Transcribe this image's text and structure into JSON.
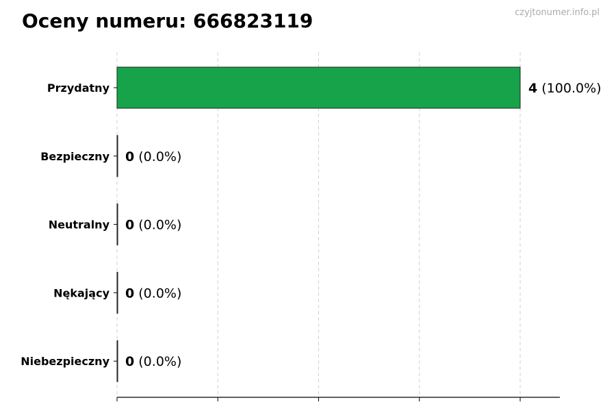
{
  "chart_data": {
    "type": "bar",
    "orientation": "horizontal",
    "title": "Oceny numeru: 666823119",
    "watermark": "czyjtonumer.info.pl",
    "categories": [
      "Przydatny",
      "Bezpieczny",
      "Neutralny",
      "Nękający",
      "Niebezpieczny"
    ],
    "values": [
      4,
      0,
      0,
      0,
      0
    ],
    "percent_labels": [
      "(100.0%)",
      "(0.0%)",
      "(0.0%)",
      "(0.0%)",
      "(0.0%)"
    ],
    "xlim": [
      0,
      4.4
    ],
    "xticks": [
      0,
      1,
      2,
      3,
      4
    ],
    "xtick_labels_shown": false,
    "grid": "x, dashed",
    "bar_color": "#16a34a",
    "xlabel": "",
    "ylabel": ""
  }
}
